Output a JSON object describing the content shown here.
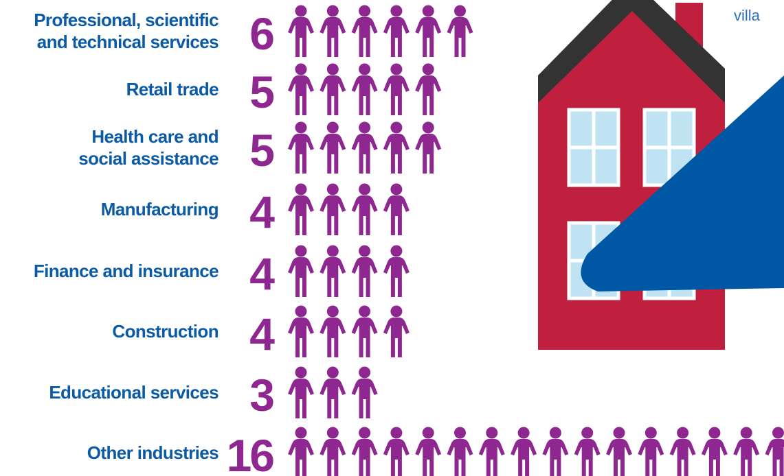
{
  "chart_data": {
    "type": "pictograph",
    "categories": [
      "Professional, scientific\nand technical services",
      "Retail trade",
      "Health care and\nsocial assistance",
      "Manufacturing",
      "Finance and insurance",
      "Construction",
      "Educational services",
      "Other industries"
    ],
    "values": [
      6,
      5,
      5,
      4,
      4,
      4,
      3,
      16
    ],
    "color": "#8e278f",
    "label_color": "#0b5aa6",
    "annotation": "villa"
  }
}
